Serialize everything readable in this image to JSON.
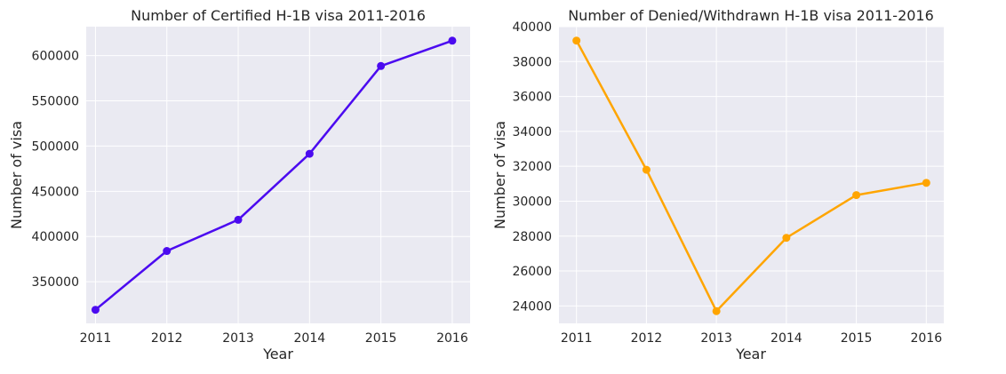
{
  "chart_data": [
    {
      "type": "line",
      "title": "Number of Certified H-1B visa 2011-2016",
      "xlabel": "Year",
      "ylabel": "Number of visa",
      "x": [
        2011,
        2012,
        2013,
        2014,
        2015,
        2016
      ],
      "x_tick_labels": [
        "2011",
        "2012",
        "2013",
        "2014",
        "2015",
        "2016"
      ],
      "series": [
        {
          "values": [
            319000,
            384000,
            418500,
            491500,
            588500,
            616500
          ],
          "color": "#4b0af0"
        }
      ],
      "xlim": [
        2010.87,
        2016.25
      ],
      "ylim": [
        304000,
        632000
      ],
      "yticks": [
        350000,
        400000,
        450000,
        500000,
        550000,
        600000
      ],
      "y_tick_labels": [
        "350000",
        "400000",
        "450000",
        "500000",
        "550000",
        "600000"
      ],
      "grid": true
    },
    {
      "type": "line",
      "title": "Number of Denied/Withdrawn H-1B visa 2011-2016",
      "xlabel": "Year",
      "ylabel": "Number of visa",
      "x": [
        2011,
        2012,
        2013,
        2014,
        2015,
        2016
      ],
      "x_tick_labels": [
        "2011",
        "2012",
        "2013",
        "2014",
        "2015",
        "2016"
      ],
      "series": [
        {
          "values": [
            39200,
            31800,
            23700,
            27900,
            30350,
            31050
          ],
          "color": "#ffa500"
        }
      ],
      "xlim": [
        2010.75,
        2016.25
      ],
      "ylim": [
        23000,
        40000
      ],
      "yticks": [
        24000,
        26000,
        28000,
        30000,
        32000,
        34000,
        36000,
        38000,
        40000
      ],
      "y_tick_labels": [
        "24000",
        "26000",
        "28000",
        "30000",
        "32000",
        "34000",
        "36000",
        "38000",
        "40000"
      ],
      "grid": true
    }
  ]
}
